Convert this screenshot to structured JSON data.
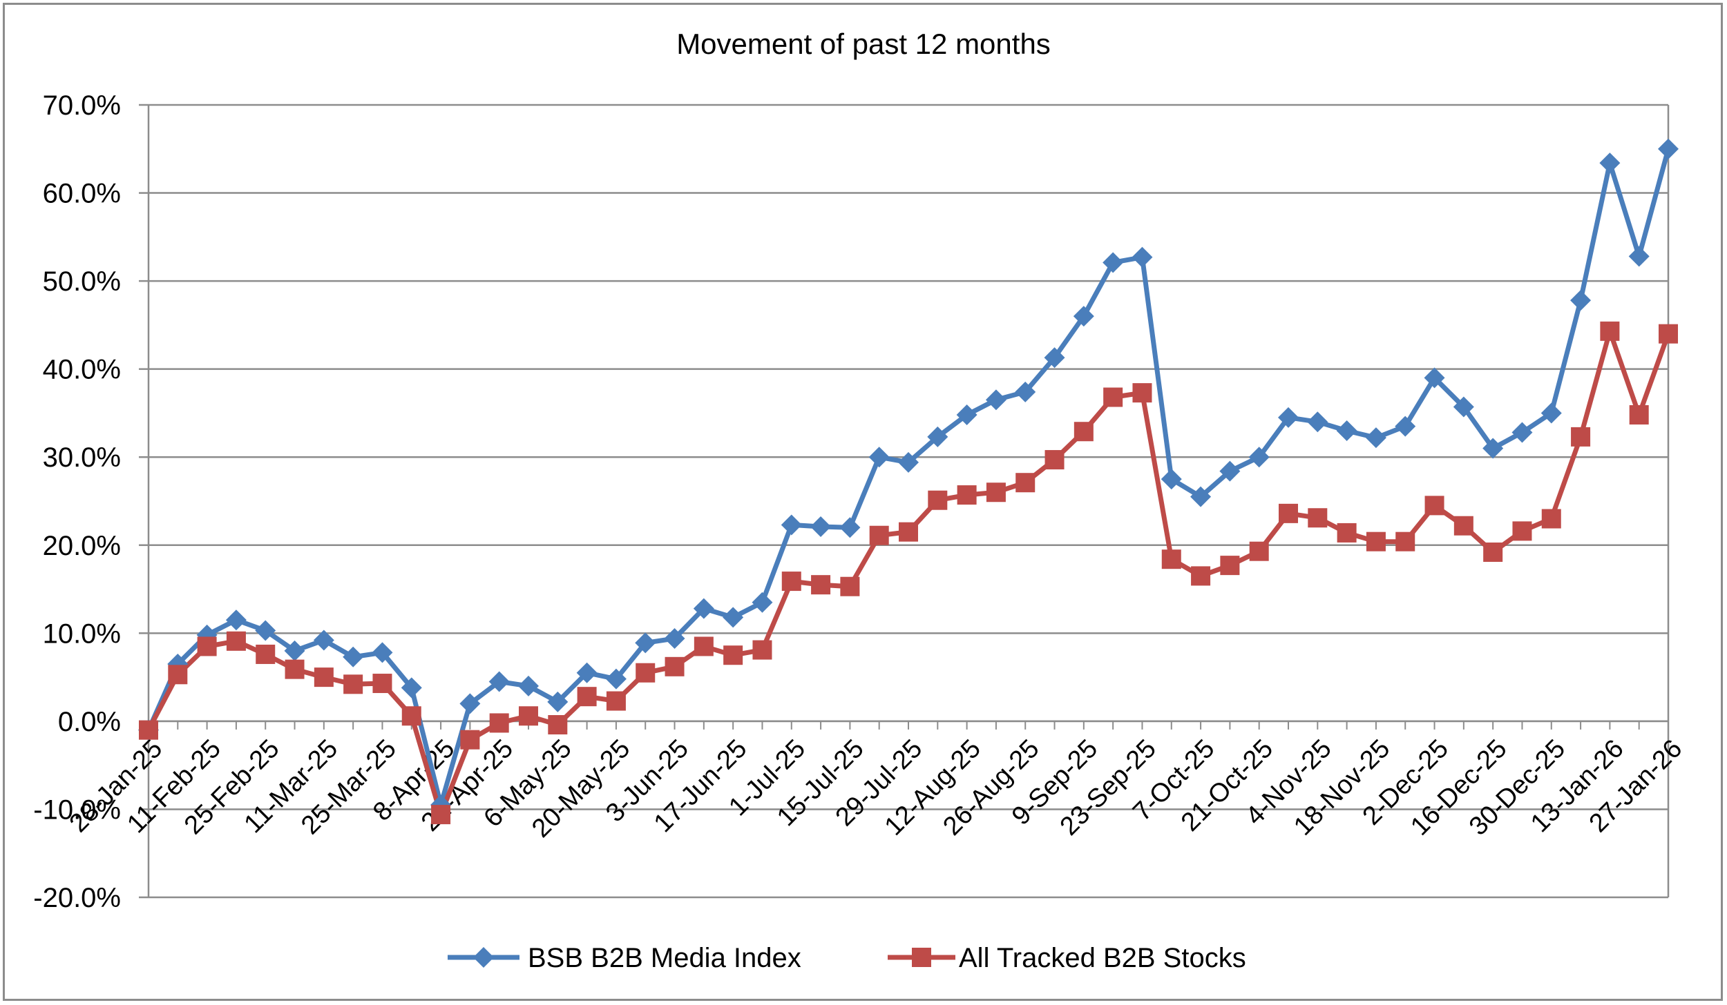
{
  "chart_data": {
    "type": "line",
    "title": "Movement of past 12 months",
    "xlabel": "",
    "ylabel": "",
    "ylim": [
      -20,
      70
    ],
    "yticks": [
      "70.0%",
      "60.0%",
      "50.0%",
      "40.0%",
      "30.0%",
      "20.0%",
      "10.0%",
      "0.0%",
      "-10.0%",
      "-20.0%"
    ],
    "ytick_values": [
      70,
      60,
      50,
      40,
      30,
      20,
      10,
      0,
      -10,
      -20
    ],
    "grid": true,
    "legend_position": "bottom",
    "categories": [
      "28-Jan-25",
      "4-Feb-25",
      "11-Feb-25",
      "18-Feb-25",
      "25-Feb-25",
      "4-Mar-25",
      "11-Mar-25",
      "18-Mar-25",
      "25-Mar-25",
      "1-Apr-25",
      "8-Apr-25",
      "15-Apr-25",
      "22-Apr-25",
      "29-Apr-25",
      "6-May-25",
      "13-May-25",
      "20-May-25",
      "27-May-25",
      "3-Jun-25",
      "10-Jun-25",
      "17-Jun-25",
      "24-Jun-25",
      "1-Jul-25",
      "8-Jul-25",
      "15-Jul-25",
      "22-Jul-25",
      "29-Jul-25",
      "5-Aug-25",
      "12-Aug-25",
      "19-Aug-25",
      "26-Aug-25",
      "2-Sep-25",
      "9-Sep-25",
      "16-Sep-25",
      "23-Sep-25",
      "30-Sep-25",
      "7-Oct-25",
      "14-Oct-25",
      "21-Oct-25",
      "28-Oct-25",
      "4-Nov-25",
      "11-Nov-25",
      "18-Nov-25",
      "25-Nov-25",
      "2-Dec-25",
      "9-Dec-25",
      "16-Dec-25",
      "23-Dec-25",
      "30-Dec-25",
      "6-Jan-26",
      "13-Jan-26",
      "20-Jan-26",
      "27-Jan-26"
    ],
    "xtick_labels": [
      "28-Jan-25",
      "11-Feb-25",
      "25-Feb-25",
      "11-Mar-25",
      "25-Mar-25",
      "8-Apr-25",
      "22-Apr-25",
      "6-May-25",
      "20-May-25",
      "3-Jun-25",
      "17-Jun-25",
      "1-Jul-25",
      "15-Jul-25",
      "29-Jul-25",
      "12-Aug-25",
      "26-Aug-25",
      "9-Sep-25",
      "23-Sep-25",
      "7-Oct-25",
      "21-Oct-25",
      "4-Nov-25",
      "18-Nov-25",
      "2-Dec-25",
      "16-Dec-25",
      "30-Dec-25",
      "13-Jan-26",
      "27-Jan-26"
    ],
    "series": [
      {
        "name": "BSB B2B Media Index",
        "color": "#4a7ebb",
        "marker": "diamond",
        "values": [
          -1.0,
          6.5,
          9.8,
          11.5,
          10.3,
          8.0,
          9.2,
          7.3,
          7.8,
          3.8,
          -9.5,
          2.0,
          4.5,
          4.0,
          2.2,
          5.5,
          4.8,
          8.9,
          9.4,
          12.8,
          11.8,
          13.5,
          22.3,
          22.1,
          22.0,
          30.0,
          29.4,
          32.3,
          34.8,
          36.5,
          37.4,
          41.3,
          46.0,
          52.1,
          52.7,
          27.5,
          25.5,
          28.4,
          30.0,
          34.5,
          34.0,
          33.0,
          32.2,
          33.5,
          39.0,
          35.7,
          31.0,
          32.8,
          35.0,
          47.8,
          63.4,
          52.8,
          65.0
        ]
      },
      {
        "name": "All Tracked B2B Stocks",
        "color": "#be4b48",
        "marker": "square",
        "values": [
          -1.0,
          5.3,
          8.5,
          9.1,
          7.6,
          5.9,
          5.0,
          4.2,
          4.3,
          0.6,
          -10.6,
          -2.1,
          -0.2,
          0.6,
          -0.4,
          2.8,
          2.3,
          5.5,
          6.2,
          8.5,
          7.5,
          8.1,
          15.9,
          15.5,
          15.3,
          21.1,
          21.5,
          25.1,
          25.7,
          26.0,
          27.1,
          29.7,
          32.9,
          36.8,
          37.3,
          18.4,
          16.5,
          17.7,
          19.3,
          23.6,
          23.1,
          21.4,
          20.4,
          20.4,
          24.5,
          22.2,
          19.2,
          21.6,
          23.0,
          32.3,
          44.3,
          34.8,
          44.0
        ]
      }
    ]
  }
}
